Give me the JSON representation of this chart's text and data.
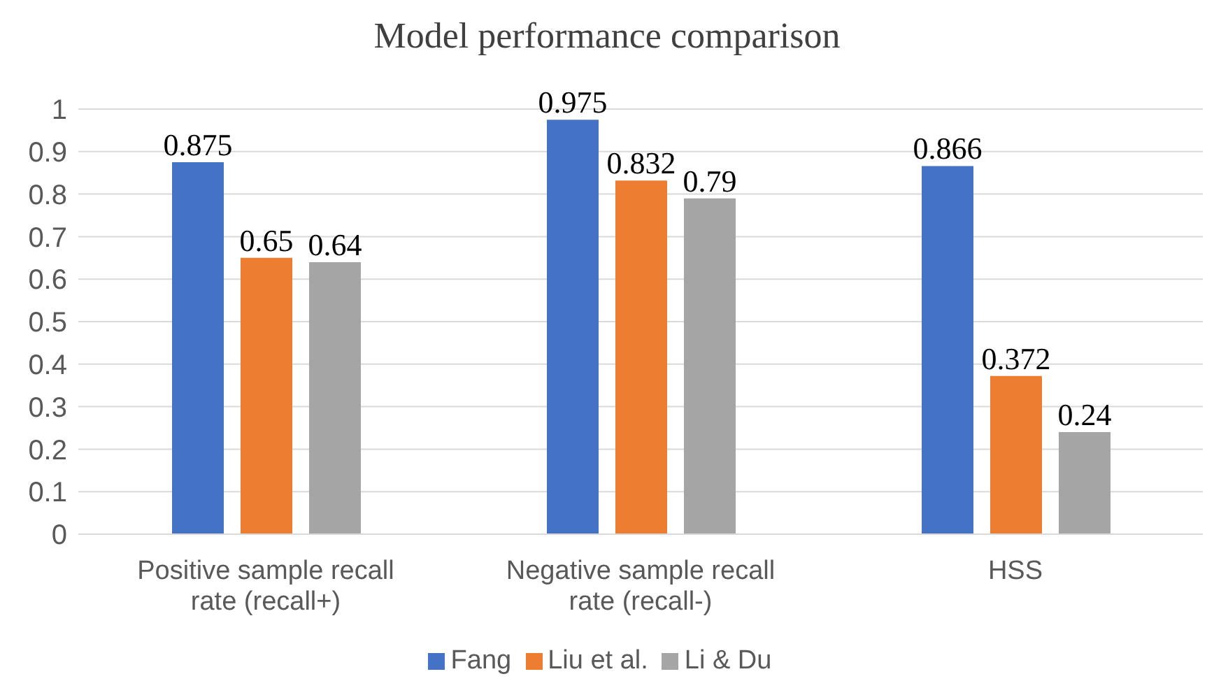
{
  "chart_data": {
    "type": "bar",
    "title": "Model performance comparison",
    "categories": [
      "Positive sample recall rate (recall+)",
      "Negative sample recall rate (recall-)",
      "HSS"
    ],
    "series": [
      {
        "name": "Fang",
        "color": "#4472c4",
        "values": [
          0.875,
          0.975,
          0.866
        ]
      },
      {
        "name": "Liu et al.",
        "color": "#ed7d31",
        "values": [
          0.65,
          0.832,
          0.372
        ]
      },
      {
        "name": "Li & Du",
        "color": "#a5a5a5",
        "values": [
          0.64,
          0.79,
          0.24
        ]
      }
    ],
    "ylim": [
      0,
      1
    ],
    "yticks": [
      0,
      0.1,
      0.2,
      0.3,
      0.4,
      0.5,
      0.6,
      0.7,
      0.8,
      0.9,
      1
    ],
    "grid": "y",
    "legend": "bottom",
    "data_labels": true
  }
}
